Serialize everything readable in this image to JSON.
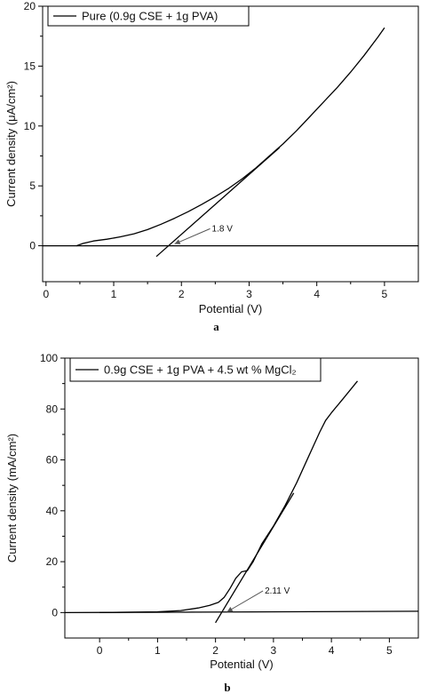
{
  "chart_data": [
    {
      "type": "line",
      "panel_label": "a",
      "xlabel": "Potential (V)",
      "ylabel": "Current density (μA/cm²)",
      "xlim": [
        -0.05,
        5.5
      ],
      "ylim": [
        -3,
        20
      ],
      "x_ticks": [
        0,
        1,
        2,
        3,
        4,
        5
      ],
      "y_ticks": [
        0,
        5,
        10,
        15,
        20
      ],
      "grid": false,
      "legend": "top-left",
      "legend_entries": [
        "Pure (0.9g CSE + 1g PVA)"
      ],
      "series": [
        {
          "name": "Pure (0.9g CSE + 1g PVA)",
          "x": [
            0.45,
            0.55,
            0.7,
            0.9,
            1.1,
            1.3,
            1.5,
            1.7,
            1.9,
            2.1,
            2.3,
            2.5,
            2.7,
            2.9,
            3.1,
            3.3,
            3.5,
            3.7,
            3.9,
            4.1,
            4.3,
            4.5,
            4.7,
            4.9,
            5.0
          ],
          "y": [
            0.0,
            0.2,
            0.4,
            0.55,
            0.75,
            1.0,
            1.35,
            1.8,
            2.3,
            2.85,
            3.45,
            4.1,
            4.8,
            5.6,
            6.5,
            7.5,
            8.5,
            9.6,
            10.8,
            12.0,
            13.2,
            14.5,
            15.9,
            17.4,
            18.2
          ]
        },
        {
          "x": [
            1.63,
            3.45
          ],
          "y": [
            -0.9,
            8.2
          ]
        },
        {
          "x": [
            -0.05,
            5.5
          ],
          "y": [
            0,
            0
          ]
        }
      ],
      "annotations": [
        {
          "text": "1.8 V",
          "x": 2.45,
          "y": 1.2,
          "arrow_to": [
            1.9,
            0.15
          ]
        }
      ]
    },
    {
      "type": "line",
      "panel_label": "b",
      "xlabel": "Potential (V)",
      "ylabel": "Current density (mA/cm²)",
      "xlim": [
        -0.6,
        5.5
      ],
      "ylim": [
        -10,
        100
      ],
      "x_ticks": [
        0,
        1,
        2,
        3,
        4,
        5
      ],
      "y_ticks": [
        0,
        20,
        40,
        60,
        80,
        100
      ],
      "grid": false,
      "legend": "top-left",
      "legend_entries": [
        "0.9g CSE + 1g PVA + 4.5 wt % MgCl₂"
      ],
      "series": [
        {
          "name": "0.9g CSE + 1g PVA + 4.5 wt % MgCl₂",
          "x": [
            0.0,
            1.0,
            1.4,
            1.7,
            1.9,
            2.05,
            2.15,
            2.25,
            2.35,
            2.45,
            2.55,
            2.65,
            2.8,
            3.0,
            3.2,
            3.4,
            3.6,
            3.8,
            3.9,
            4.0,
            4.2,
            4.45
          ],
          "y": [
            0.0,
            0.3,
            0.8,
            1.8,
            2.8,
            4.0,
            6.0,
            9.5,
            13.5,
            16.0,
            16.5,
            20.0,
            27.0,
            34.0,
            42.0,
            51.0,
            61.0,
            71.0,
            75.5,
            78.5,
            84.0,
            91.0
          ]
        },
        {
          "x": [
            2.0,
            3.35
          ],
          "y": [
            -4.0,
            47.0
          ]
        },
        {
          "x": [
            -0.6,
            5.5
          ],
          "y": [
            0,
            0.5
          ]
        }
      ],
      "annotations": [
        {
          "text": "2.11 V",
          "x": 2.85,
          "y": 7.5,
          "arrow_to": [
            2.2,
            0.3
          ]
        }
      ]
    }
  ]
}
